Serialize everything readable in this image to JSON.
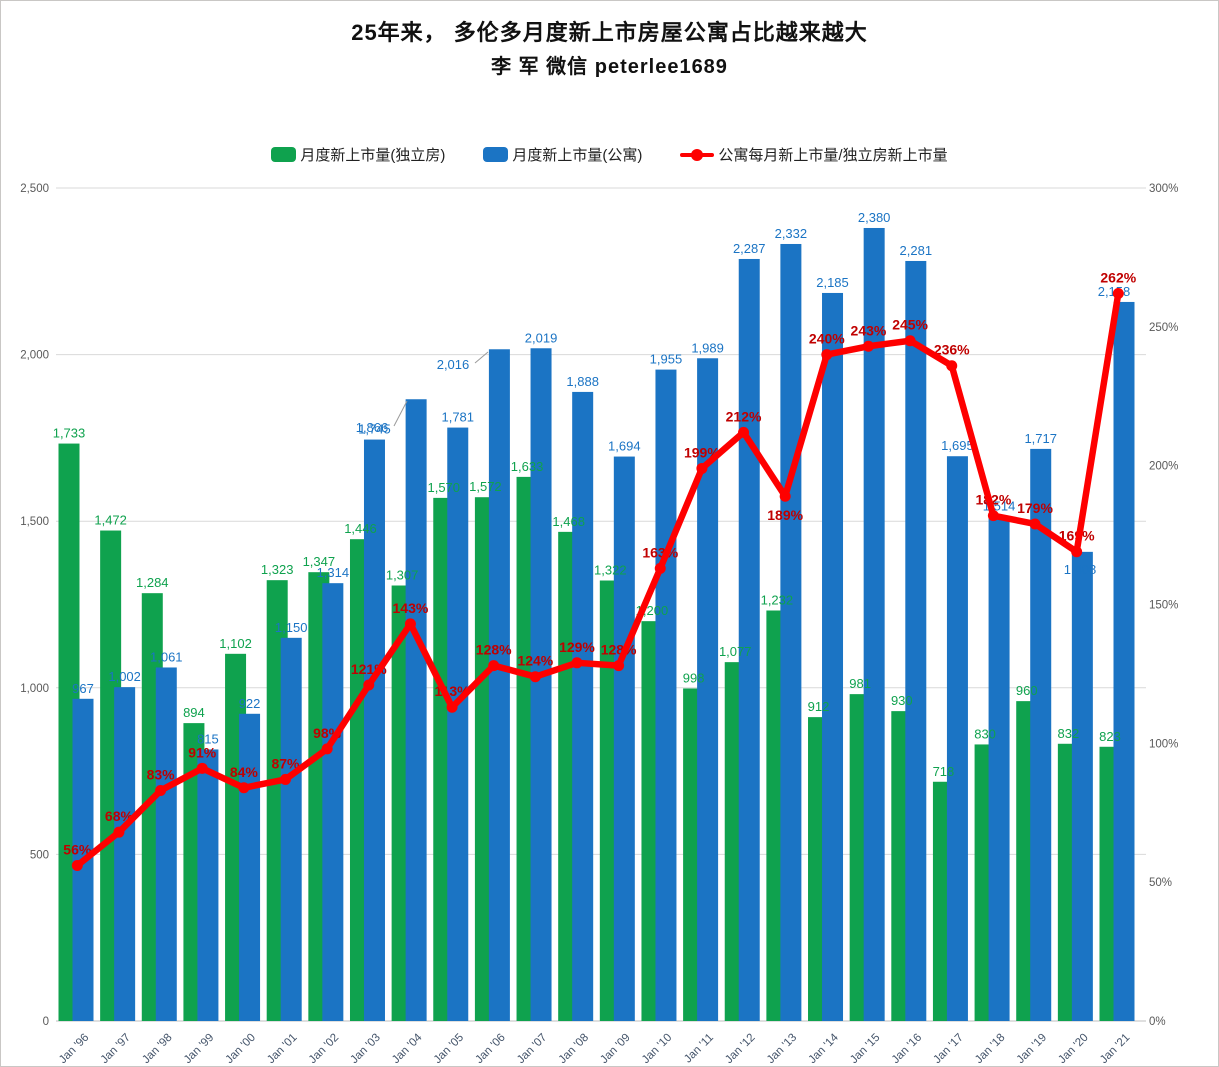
{
  "title": {
    "line1": "25年来，  多伦多月度新上市房屋公寓占比越来越大",
    "line2": "李 军  微信  peterlee1689"
  },
  "legend": [
    {
      "label": "月度新上市量(独立房)",
      "marker": "bar-swatch-green"
    },
    {
      "label": "月度新上市量(公寓)",
      "marker": "bar-swatch-blue"
    },
    {
      "label": "公寓每月新上市量/独立房新上市量",
      "marker": "line-marker-red"
    }
  ],
  "colors": {
    "green": "#0fa24e",
    "blue": "#1b74c4",
    "red_line": "#fe0000",
    "red_label": "#c00000",
    "grid": "#d9d9d9",
    "axis_line": "#bfbfbf",
    "axis_text": "#595959",
    "x_text": "#44546a",
    "leader": "#9a9a9a"
  },
  "chart_data": {
    "type": "bar",
    "subtype": "combo-bar-line",
    "categories": [
      "Jan '96",
      "Jan '97",
      "Jan '98",
      "Jan '99",
      "Jan '00",
      "Jan '01",
      "Jan '02",
      "Jan '03",
      "Jan '04",
      "Jan '05",
      "Jan '06",
      "Jan '07",
      "Jan '08",
      "Jan '09",
      "Jan '10",
      "Jan '11",
      "Jan '12",
      "Jan '13",
      "Jan '14",
      "Jan '15",
      "Jan '16",
      "Jan '17",
      "Jan '18",
      "Jan '19",
      "Jan '20",
      "Jan '21"
    ],
    "series": [
      {
        "name": "月度新上市量(独立房)",
        "type": "bar",
        "axis": "left",
        "values": [
          1733,
          1472,
          1284,
          894,
          1102,
          1323,
          1347,
          1446,
          1307,
          1570,
          1572,
          1633,
          1468,
          1322,
          1200,
          998,
          1077,
          1232,
          912,
          981,
          930,
          718,
          830,
          960,
          832,
          823
        ]
      },
      {
        "name": "月度新上市量(公寓)",
        "type": "bar",
        "axis": "left",
        "values": [
          967,
          1002,
          1061,
          815,
          922,
          1150,
          1314,
          1745,
          1866,
          1781,
          2016,
          2019,
          1888,
          1694,
          1955,
          1989,
          2287,
          2332,
          2185,
          2380,
          2281,
          1695,
          1514,
          1717,
          1408,
          2158
        ]
      },
      {
        "name": "公寓每月新上市量/独立房新上市量",
        "type": "line",
        "axis": "right",
        "values_pct": [
          56,
          68,
          83,
          91,
          84,
          87,
          98,
          121,
          143,
          113,
          128,
          124,
          129,
          128,
          163,
          199,
          212,
          189,
          240,
          243,
          245,
          236,
          182,
          179,
          169,
          262
        ]
      }
    ],
    "left_axis": {
      "ticks": [
        "0",
        "500",
        "1,000",
        "1,500",
        "2,000",
        "2,500"
      ],
      "min": 0,
      "max": 2500,
      "step": 500
    },
    "right_axis": {
      "ticks": [
        "0%",
        "50%",
        "100%",
        "150%",
        "200%",
        "250%",
        "300%"
      ],
      "min": 0,
      "max": 300,
      "step": 50
    },
    "grid": "horizontal",
    "legend_position": "top"
  }
}
